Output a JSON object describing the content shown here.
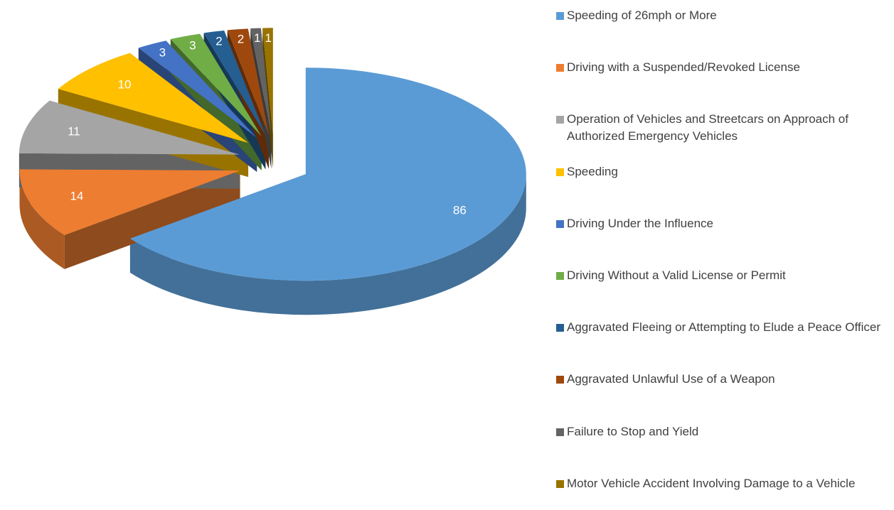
{
  "chart_data": {
    "type": "pie",
    "categories": [
      "Speeding of 26mph or More",
      "Driving with a Suspended/Revoked License",
      "Operation of Vehicles and Streetcars on Approach of Authorized Emergency Vehicles",
      "Speeding",
      "Driving Under the Influence",
      "Driving Without a Valid License or Permit",
      "Aggravated Fleeing or Attempting to Elude a Peace Officer",
      "Aggravated Unlawful Use of a Weapon",
      "Failure to Stop and Yield",
      "Motor Vehicle Accident Involving Damage to a Vehicle"
    ],
    "values": [
      86,
      14,
      11,
      10,
      3,
      3,
      2,
      2,
      1,
      1
    ],
    "colors": [
      "#5b9bd5",
      "#ed7d31",
      "#a5a5a5",
      "#ffc000",
      "#4472c4",
      "#70ad47",
      "#255e91",
      "#9e480e",
      "#636363",
      "#997300"
    ],
    "legend": "right",
    "exploded": true,
    "three_d": true
  }
}
